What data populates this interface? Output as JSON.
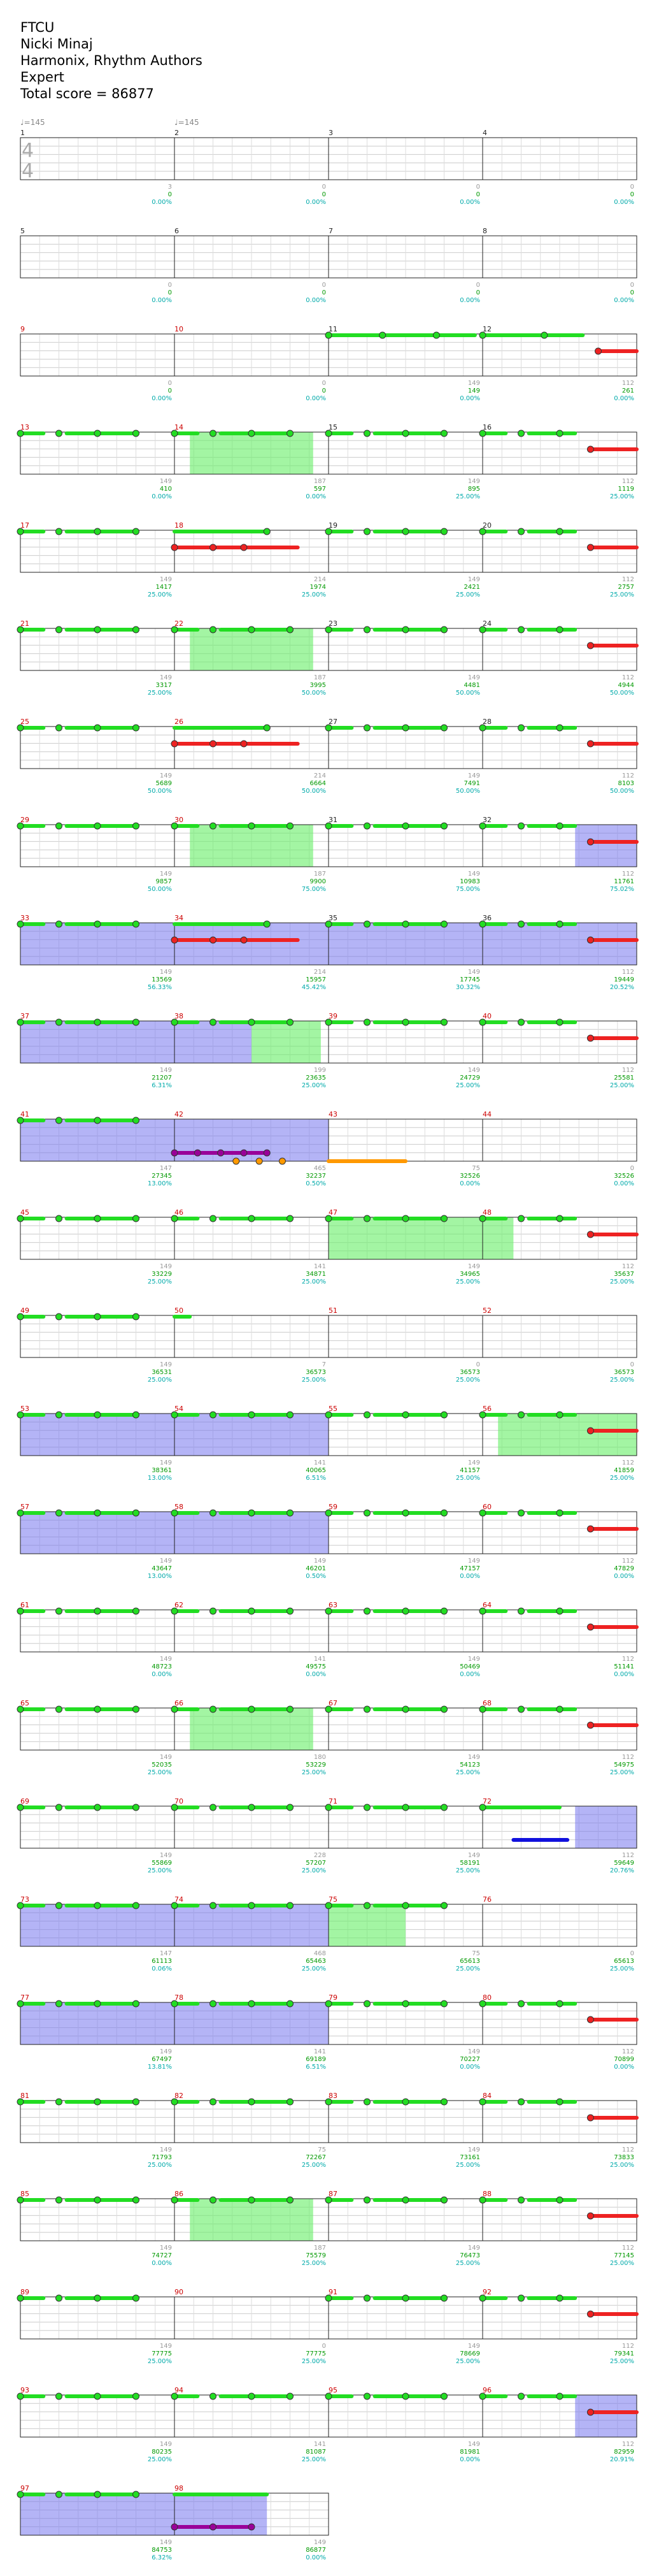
{
  "header": {
    "song": "FTCU",
    "artist": "Nicki Minaj",
    "charter": "Harmonix, Rhythm Authors",
    "difficulty": "Expert",
    "total_score": "Total score = 86877"
  },
  "time_signature": {
    "top": "4",
    "bottom": "4"
  },
  "tempos": [
    {
      "measure": 1,
      "label": "♩=145"
    },
    {
      "measure": 2,
      "label": "♩=145"
    }
  ],
  "colors": {
    "measure_number_plain": "#222222",
    "measure_number_section": "#cc0000",
    "beat_count": "#999999",
    "score": "#009900",
    "percent": "#00aaaa",
    "green_lane": "#22dd22",
    "red_lane": "#ee2222",
    "purple_lane": "#990099",
    "blue_lane": "#1111dd",
    "orange_lane": "#ff9900",
    "overdrive": "#66ee66",
    "solo": "#7777ee"
  },
  "measures": [
    {
      "n": 1,
      "beats": "3",
      "score": "0",
      "pct": "0.00%"
    },
    {
      "n": 2,
      "beats": "0",
      "score": "0",
      "pct": "0.00%"
    },
    {
      "n": 3,
      "beats": "0",
      "score": "0",
      "pct": "0.00%"
    },
    {
      "n": 4,
      "beats": "0",
      "score": "0",
      "pct": "0.00%"
    },
    {
      "n": 5,
      "beats": "0",
      "score": "0",
      "pct": "0.00%"
    },
    {
      "n": 6,
      "beats": "0",
      "score": "0",
      "pct": "0.00%"
    },
    {
      "n": 7,
      "beats": "0",
      "score": "0",
      "pct": "0.00%"
    },
    {
      "n": 8,
      "beats": "0",
      "score": "0",
      "pct": "0.00%"
    },
    {
      "n": 9,
      "beats": "0",
      "score": "0",
      "pct": "0.00%"
    },
    {
      "n": 10,
      "beats": "0",
      "score": "0",
      "pct": "0.00%"
    },
    {
      "n": 11,
      "beats": "149",
      "score": "149",
      "pct": "0.00%"
    },
    {
      "n": 12,
      "beats": "112",
      "score": "261",
      "pct": "0.00%"
    },
    {
      "n": 13,
      "beats": "149",
      "score": "410",
      "pct": "0.00%"
    },
    {
      "n": 14,
      "beats": "187",
      "score": "597",
      "pct": "0.00%"
    },
    {
      "n": 15,
      "beats": "149",
      "score": "895",
      "pct": "25.00%"
    },
    {
      "n": 16,
      "beats": "112",
      "score": "1119",
      "pct": "25.00%"
    },
    {
      "n": 17,
      "beats": "149",
      "score": "1417",
      "pct": "25.00%"
    },
    {
      "n": 18,
      "beats": "214",
      "score": "1974",
      "pct": "25.00%"
    },
    {
      "n": 19,
      "beats": "149",
      "score": "2421",
      "pct": "25.00%"
    },
    {
      "n": 20,
      "beats": "112",
      "score": "2757",
      "pct": "25.00%"
    },
    {
      "n": 21,
      "beats": "149",
      "score": "3317",
      "pct": "25.00%"
    },
    {
      "n": 22,
      "beats": "187",
      "score": "3995",
      "pct": "50.00%"
    },
    {
      "n": 23,
      "beats": "149",
      "score": "4481",
      "pct": "50.00%"
    },
    {
      "n": 24,
      "beats": "112",
      "score": "4944",
      "pct": "50.00%"
    },
    {
      "n": 25,
      "beats": "149",
      "score": "5689",
      "pct": "50.00%"
    },
    {
      "n": 26,
      "beats": "214",
      "score": "6664",
      "pct": "50.00%"
    },
    {
      "n": 27,
      "beats": "149",
      "score": "7491",
      "pct": "50.00%"
    },
    {
      "n": 28,
      "beats": "112",
      "score": "8103",
      "pct": "50.00%"
    },
    {
      "n": 29,
      "beats": "149",
      "score": "9857",
      "pct": "50.00%"
    },
    {
      "n": 30,
      "beats": "187",
      "score": "9900",
      "pct": "75.00%"
    },
    {
      "n": 31,
      "beats": "149",
      "score": "10983",
      "pct": "75.00%"
    },
    {
      "n": 32,
      "beats": "112",
      "score": "11761",
      "pct": "75.02%"
    },
    {
      "n": 33,
      "beats": "149",
      "score": "13569",
      "pct": "56.33%"
    },
    {
      "n": 34,
      "beats": "214",
      "score": "15957",
      "pct": "45.42%"
    },
    {
      "n": 35,
      "beats": "149",
      "score": "17745",
      "pct": "30.32%"
    },
    {
      "n": 36,
      "beats": "112",
      "score": "19449",
      "pct": "20.52%"
    },
    {
      "n": 37,
      "beats": "149",
      "score": "21207",
      "pct": "6.31%"
    },
    {
      "n": 38,
      "beats": "199",
      "score": "23635",
      "pct": "25.00%"
    },
    {
      "n": 39,
      "beats": "149",
      "score": "24729",
      "pct": "25.00%"
    },
    {
      "n": 40,
      "beats": "112",
      "score": "25581",
      "pct": "25.00%"
    },
    {
      "n": 41,
      "beats": "147",
      "score": "27345",
      "pct": "13.00%"
    },
    {
      "n": 42,
      "beats": "465",
      "score": "32237",
      "pct": "0.50%"
    },
    {
      "n": 43,
      "beats": "75",
      "score": "32526",
      "pct": "0.00%"
    },
    {
      "n": 44,
      "beats": "0",
      "score": "32526",
      "pct": "0.00%"
    },
    {
      "n": 45,
      "beats": "149",
      "score": "33229",
      "pct": "25.00%"
    },
    {
      "n": 46,
      "beats": "141",
      "score": "34871",
      "pct": "25.00%"
    },
    {
      "n": 47,
      "beats": "149",
      "score": "34965",
      "pct": "25.00%"
    },
    {
      "n": 48,
      "beats": "112",
      "score": "35637",
      "pct": "25.00%"
    },
    {
      "n": 49,
      "beats": "149",
      "score": "36531",
      "pct": "25.00%"
    },
    {
      "n": 50,
      "beats": "7",
      "score": "36573",
      "pct": "25.00%"
    },
    {
      "n": 51,
      "beats": "0",
      "score": "36573",
      "pct": "25.00%"
    },
    {
      "n": 52,
      "beats": "0",
      "score": "36573",
      "pct": "25.00%"
    },
    {
      "n": 53,
      "beats": "149",
      "score": "38361",
      "pct": "13.00%"
    },
    {
      "n": 54,
      "beats": "141",
      "score": "40065",
      "pct": "6.51%"
    },
    {
      "n": 55,
      "beats": "149",
      "score": "41157",
      "pct": "25.00%"
    },
    {
      "n": 56,
      "beats": "112",
      "score": "41859",
      "pct": "25.00%"
    },
    {
      "n": 57,
      "beats": "149",
      "score": "43647",
      "pct": "13.00%"
    },
    {
      "n": 58,
      "beats": "149",
      "score": "46201",
      "pct": "0.50%"
    },
    {
      "n": 59,
      "beats": "149",
      "score": "47157",
      "pct": "0.00%"
    },
    {
      "n": 60,
      "beats": "112",
      "score": "47829",
      "pct": "0.00%"
    },
    {
      "n": 61,
      "beats": "149",
      "score": "48723",
      "pct": "0.00%"
    },
    {
      "n": 62,
      "beats": "141",
      "score": "49575",
      "pct": "0.00%"
    },
    {
      "n": 63,
      "beats": "149",
      "score": "50469",
      "pct": "0.00%"
    },
    {
      "n": 64,
      "beats": "112",
      "score": "51141",
      "pct": "0.00%"
    },
    {
      "n": 65,
      "beats": "149",
      "score": "52035",
      "pct": "25.00%"
    },
    {
      "n": 66,
      "beats": "180",
      "score": "53229",
      "pct": "25.00%"
    },
    {
      "n": 67,
      "beats": "149",
      "score": "54123",
      "pct": "25.00%"
    },
    {
      "n": 68,
      "beats": "112",
      "score": "54975",
      "pct": "25.00%"
    },
    {
      "n": 69,
      "beats": "149",
      "score": "55869",
      "pct": "25.00%"
    },
    {
      "n": 70,
      "beats": "228",
      "score": "57207",
      "pct": "25.00%"
    },
    {
      "n": 71,
      "beats": "149",
      "score": "58191",
      "pct": "25.00%"
    },
    {
      "n": 72,
      "beats": "112",
      "score": "59649",
      "pct": "20.76%"
    },
    {
      "n": 73,
      "beats": "147",
      "score": "61113",
      "pct": "0.06%"
    },
    {
      "n": 74,
      "beats": "468",
      "score": "65463",
      "pct": "25.00%"
    },
    {
      "n": 75,
      "beats": "75",
      "score": "65613",
      "pct": "25.00%"
    },
    {
      "n": 76,
      "beats": "0",
      "score": "65613",
      "pct": "25.00%"
    },
    {
      "n": 77,
      "beats": "149",
      "score": "67497",
      "pct": "13.81%"
    },
    {
      "n": 78,
      "beats": "141",
      "score": "69189",
      "pct": "6.51%"
    },
    {
      "n": 79,
      "beats": "149",
      "score": "70227",
      "pct": "0.00%"
    },
    {
      "n": 80,
      "beats": "112",
      "score": "70899",
      "pct": "0.00%"
    },
    {
      "n": 81,
      "beats": "149",
      "score": "71793",
      "pct": "25.00%"
    },
    {
      "n": 82,
      "beats": "75",
      "score": "72267",
      "pct": "25.00%"
    },
    {
      "n": 83,
      "beats": "149",
      "score": "73161",
      "pct": "25.00%"
    },
    {
      "n": 84,
      "beats": "112",
      "score": "73833",
      "pct": "25.00%"
    },
    {
      "n": 85,
      "beats": "149",
      "score": "74727",
      "pct": "0.00%"
    },
    {
      "n": 86,
      "beats": "187",
      "score": "75579",
      "pct": "25.00%"
    },
    {
      "n": 87,
      "beats": "149",
      "score": "76473",
      "pct": "25.00%"
    },
    {
      "n": 88,
      "beats": "112",
      "score": "77145",
      "pct": "25.00%"
    },
    {
      "n": 89,
      "beats": "149",
      "score": "77775",
      "pct": "25.00%"
    },
    {
      "n": 90,
      "beats": "0",
      "score": "77775",
      "pct": "25.00%"
    },
    {
      "n": 91,
      "beats": "149",
      "score": "78669",
      "pct": "25.00%"
    },
    {
      "n": 92,
      "beats": "112",
      "score": "79341",
      "pct": "25.00%"
    },
    {
      "n": 93,
      "beats": "149",
      "score": "80235",
      "pct": "25.00%"
    },
    {
      "n": 94,
      "beats": "141",
      "score": "81087",
      "pct": "25.00%"
    },
    {
      "n": 95,
      "beats": "149",
      "score": "81981",
      "pct": "0.00%"
    },
    {
      "n": 96,
      "beats": "112",
      "score": "82959",
      "pct": "20.91%"
    },
    {
      "n": 97,
      "beats": "149",
      "score": "84753",
      "pct": "6.32%"
    },
    {
      "n": 98,
      "beats": "149",
      "score": "86877",
      "pct": "0.00%"
    }
  ],
  "section_starts": [
    9,
    10,
    13,
    14,
    17,
    18,
    21,
    22,
    25,
    26,
    29,
    30,
    33,
    34,
    37,
    38,
    39,
    40,
    41,
    42,
    43,
    44,
    45,
    46,
    47,
    48,
    49,
    50,
    51,
    52,
    53,
    54,
    55,
    56,
    57,
    58,
    59,
    60,
    61,
    62,
    63,
    64,
    65,
    66,
    67,
    68,
    69,
    70,
    71,
    72,
    73,
    74,
    75,
    76,
    77,
    78,
    79,
    80,
    81,
    82,
    83,
    84,
    85,
    86,
    87,
    88,
    89,
    90,
    91,
    92,
    93,
    94,
    95,
    96,
    97,
    98
  ]
}
